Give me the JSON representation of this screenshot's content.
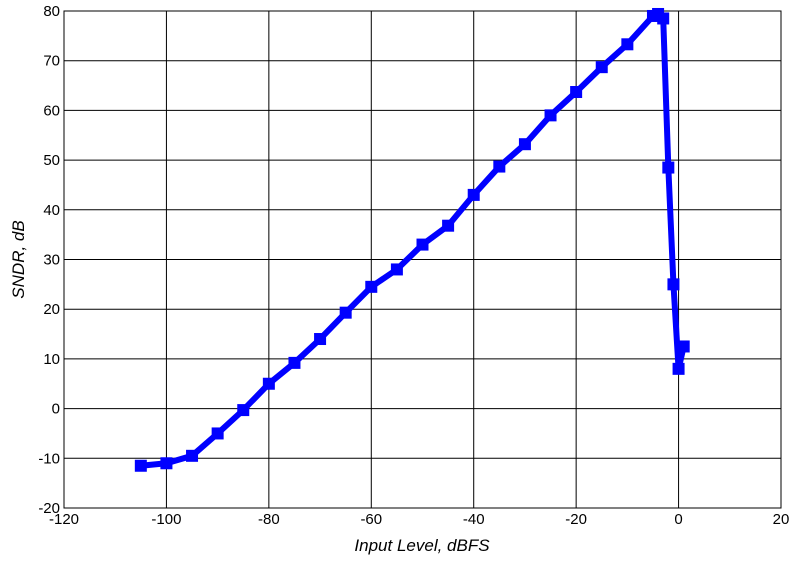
{
  "chart_data": {
    "type": "line",
    "title": "",
    "xlabel": "Input Level, dBFS",
    "ylabel": "SNDR, dB",
    "xlim": [
      -120,
      20
    ],
    "ylim": [
      -20,
      80
    ],
    "xticks": [
      -120,
      -100,
      -80,
      -60,
      -40,
      -20,
      0,
      20
    ],
    "yticks": [
      -20,
      -10,
      0,
      10,
      20,
      30,
      40,
      50,
      60,
      70,
      80
    ],
    "xtick_labels": [
      "-120",
      "-100",
      "-80",
      "-60",
      "-40",
      "-20",
      "0",
      "20"
    ],
    "ytick_labels": [
      "-20",
      "-10",
      "0",
      "10",
      "20",
      "30",
      "40",
      "50",
      "60",
      "70",
      "80"
    ],
    "grid": true,
    "legend": "none",
    "series": [
      {
        "color": "#0000ff",
        "marker": "square",
        "x": [
          -105,
          -100,
          -95,
          -90,
          -85,
          -80,
          -75,
          -70,
          -65,
          -60,
          -55,
          -50,
          -45,
          -40,
          -35,
          -30,
          -25,
          -20,
          -15,
          -10,
          -5,
          -4,
          -3,
          -2,
          -1,
          0,
          1
        ],
        "y": [
          -11.5,
          -11,
          -9.5,
          -5,
          -0.3,
          5,
          9.2,
          14,
          19.3,
          24.5,
          28,
          33,
          36.8,
          43,
          48.7,
          53.2,
          59,
          63.7,
          68.7,
          73.3,
          79,
          79.4,
          78.5,
          48.5,
          25,
          8,
          12.5
        ]
      }
    ]
  }
}
